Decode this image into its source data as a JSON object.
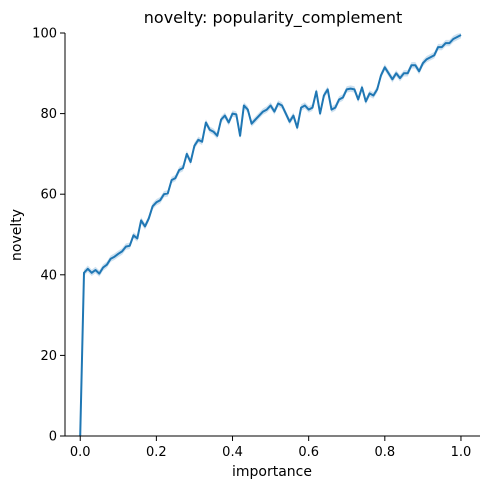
{
  "chart_data": {
    "type": "line",
    "title": "novelty: popularity_complement",
    "xlabel": "importance",
    "ylabel": "novelty",
    "xlim": [
      -0.04,
      1.05
    ],
    "ylim": [
      0,
      100
    ],
    "x_ticks": [
      "0.0",
      "0.2",
      "0.4",
      "0.6",
      "0.8",
      "1.0"
    ],
    "y_ticks": [
      "0",
      "20",
      "40",
      "60",
      "80",
      "100"
    ],
    "grid": false,
    "legend": "none",
    "colors": {
      "line": "#1f77b4",
      "band": "#a6c8e4",
      "axes": "#000000"
    },
    "series": [
      {
        "x": [
          0.0,
          0.01,
          0.02,
          0.03,
          0.04,
          0.05,
          0.06,
          0.07,
          0.08,
          0.09,
          0.1,
          0.11,
          0.12,
          0.13,
          0.14,
          0.15,
          0.16,
          0.17,
          0.18,
          0.19,
          0.2,
          0.21,
          0.22,
          0.23,
          0.24,
          0.25,
          0.26,
          0.27,
          0.28,
          0.29,
          0.3,
          0.31,
          0.32,
          0.33,
          0.34,
          0.35,
          0.36,
          0.37,
          0.38,
          0.39,
          0.4,
          0.41,
          0.42,
          0.43,
          0.44,
          0.45,
          0.46,
          0.47,
          0.48,
          0.49,
          0.5,
          0.51,
          0.52,
          0.53,
          0.54,
          0.55,
          0.56,
          0.57,
          0.58,
          0.59,
          0.6,
          0.61,
          0.62,
          0.63,
          0.64,
          0.65,
          0.66,
          0.67,
          0.68,
          0.69,
          0.7,
          0.71,
          0.72,
          0.73,
          0.74,
          0.75,
          0.76,
          0.77,
          0.78,
          0.79,
          0.8,
          0.81,
          0.82,
          0.83,
          0.84,
          0.85,
          0.86,
          0.87,
          0.88,
          0.89,
          0.9,
          0.91,
          0.92,
          0.93,
          0.94,
          0.95,
          0.96,
          0.97,
          0.98,
          0.99,
          1.0
        ],
        "y": [
          0,
          40.5,
          41.5,
          40.5,
          41.2,
          40.3,
          41.8,
          42.5,
          44.0,
          44.5,
          45.2,
          45.8,
          47.0,
          47.2,
          49.8,
          49.0,
          53.5,
          52.0,
          54.0,
          57.0,
          58.0,
          58.5,
          60.0,
          60.2,
          63.5,
          64.0,
          66.0,
          66.5,
          70.0,
          68.0,
          72.0,
          73.5,
          73.0,
          77.8,
          76.0,
          75.5,
          74.5,
          78.5,
          79.5,
          77.8,
          80.0,
          79.8,
          74.5,
          82.0,
          81.0,
          77.5,
          78.5,
          79.5,
          80.5,
          81.0,
          82.0,
          80.5,
          82.5,
          82.0,
          80.0,
          78.0,
          79.5,
          76.5,
          81.5,
          82.0,
          81.0,
          81.5,
          85.5,
          80.0,
          84.5,
          86.0,
          81.0,
          81.5,
          83.5,
          84.0,
          86.0,
          86.2,
          86.0,
          83.5,
          86.5,
          83.0,
          85.0,
          84.5,
          86.0,
          89.5,
          91.5,
          90.0,
          88.5,
          90.0,
          88.8,
          90.0,
          90.0,
          92.0,
          92.0,
          90.5,
          92.5,
          93.5,
          94.0,
          94.5,
          96.5,
          96.5,
          97.5,
          97.5,
          98.5,
          99.0,
          99.5
        ]
      }
    ]
  }
}
